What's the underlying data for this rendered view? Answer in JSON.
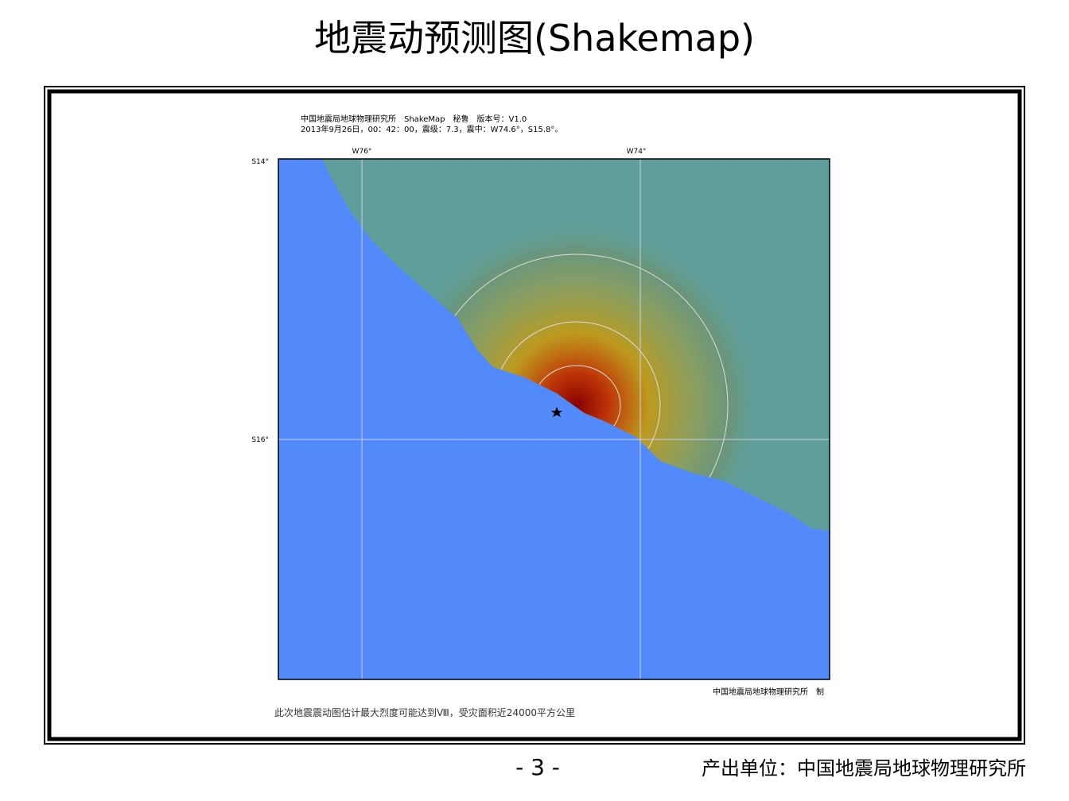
{
  "header": {
    "title": "地震动预测图(Shakemap)"
  },
  "map": {
    "info_line_1": "中国地震局地球物理研究所　ShakeMap　秘鲁　版本号：V1.0",
    "info_line_2": "2013年9月26日，00：42：00，震级：7.3，震中：W74.6°，S15.8°。",
    "longitude_labels": [
      "W76°",
      "W74°"
    ],
    "latitude_labels": [
      "S14°",
      "S16°"
    ],
    "credit": "中国地震局地球物理研究所　制",
    "caption": "此次地震震动图估计最大烈度可能达到Ⅷ，受灾面积近24000平方公里"
  },
  "footer": {
    "page_number": "- 3 -",
    "producer": "产出单位：中国地震局地球物理研究所"
  }
}
